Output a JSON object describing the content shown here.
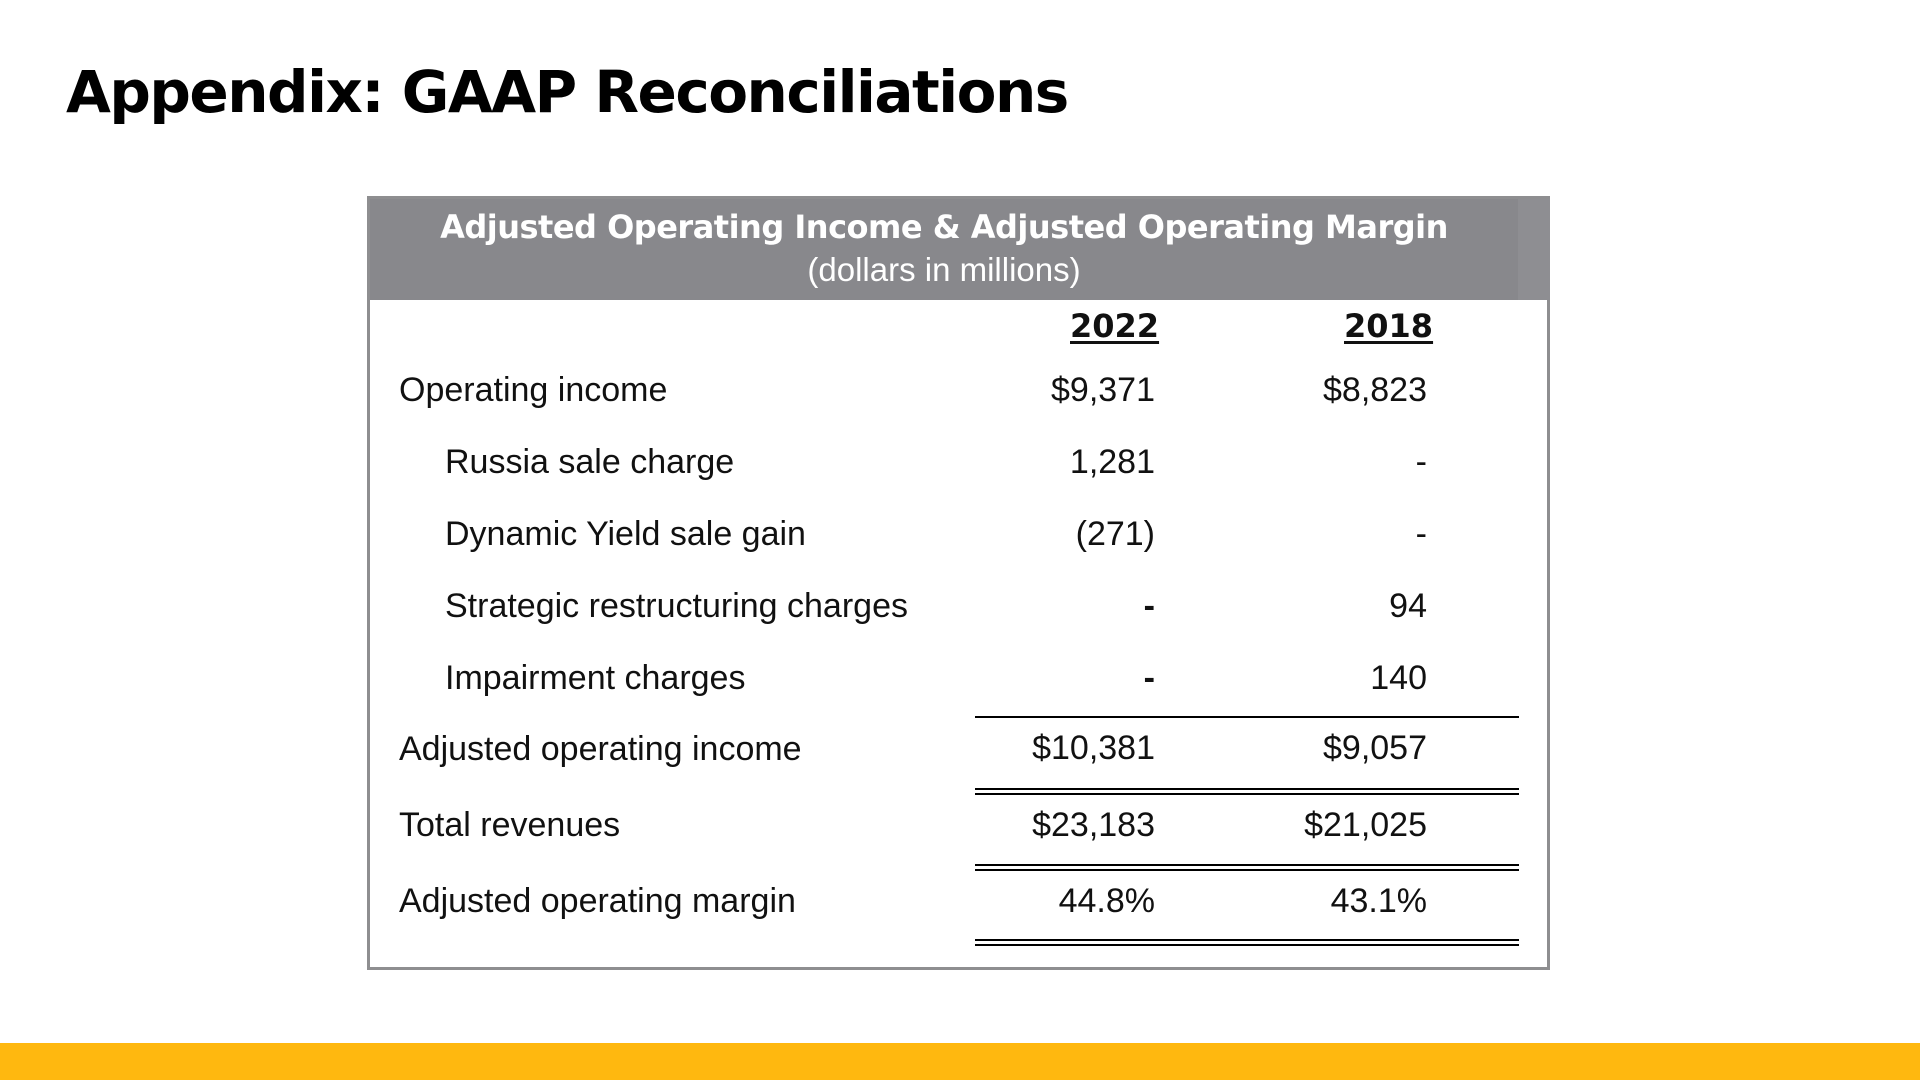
{
  "slide": {
    "title": "Appendix: GAAP Reconciliations",
    "accent_color": "#ffb80f"
  },
  "table": {
    "title": "Adjusted Operating Income & Adjusted Operating Margin",
    "subtitle": "(dollars in millions)",
    "header_color": "#88888c",
    "columns": [
      "2022",
      "2018"
    ],
    "rows": [
      {
        "label": "Operating income",
        "v2022": "$9,371",
        "v2018": "$8,823"
      },
      {
        "label": "Russia sale charge",
        "v2022": "1,281",
        "v2018": "-"
      },
      {
        "label": "Dynamic Yield sale gain",
        "v2022": "(271)",
        "v2018": "-"
      },
      {
        "label": "Strategic restructuring charges",
        "v2022": "-",
        "v2018": "94"
      },
      {
        "label": "Impairment charges",
        "v2022": "-",
        "v2018": "140"
      },
      {
        "label": "Adjusted operating income",
        "v2022": "$10,381",
        "v2018": "$9,057"
      },
      {
        "label": "Total revenues",
        "v2022": "$23,183",
        "v2018": "$21,025"
      },
      {
        "label": "Adjusted operating margin",
        "v2022": "44.8%",
        "v2018": "43.1%"
      }
    ]
  }
}
